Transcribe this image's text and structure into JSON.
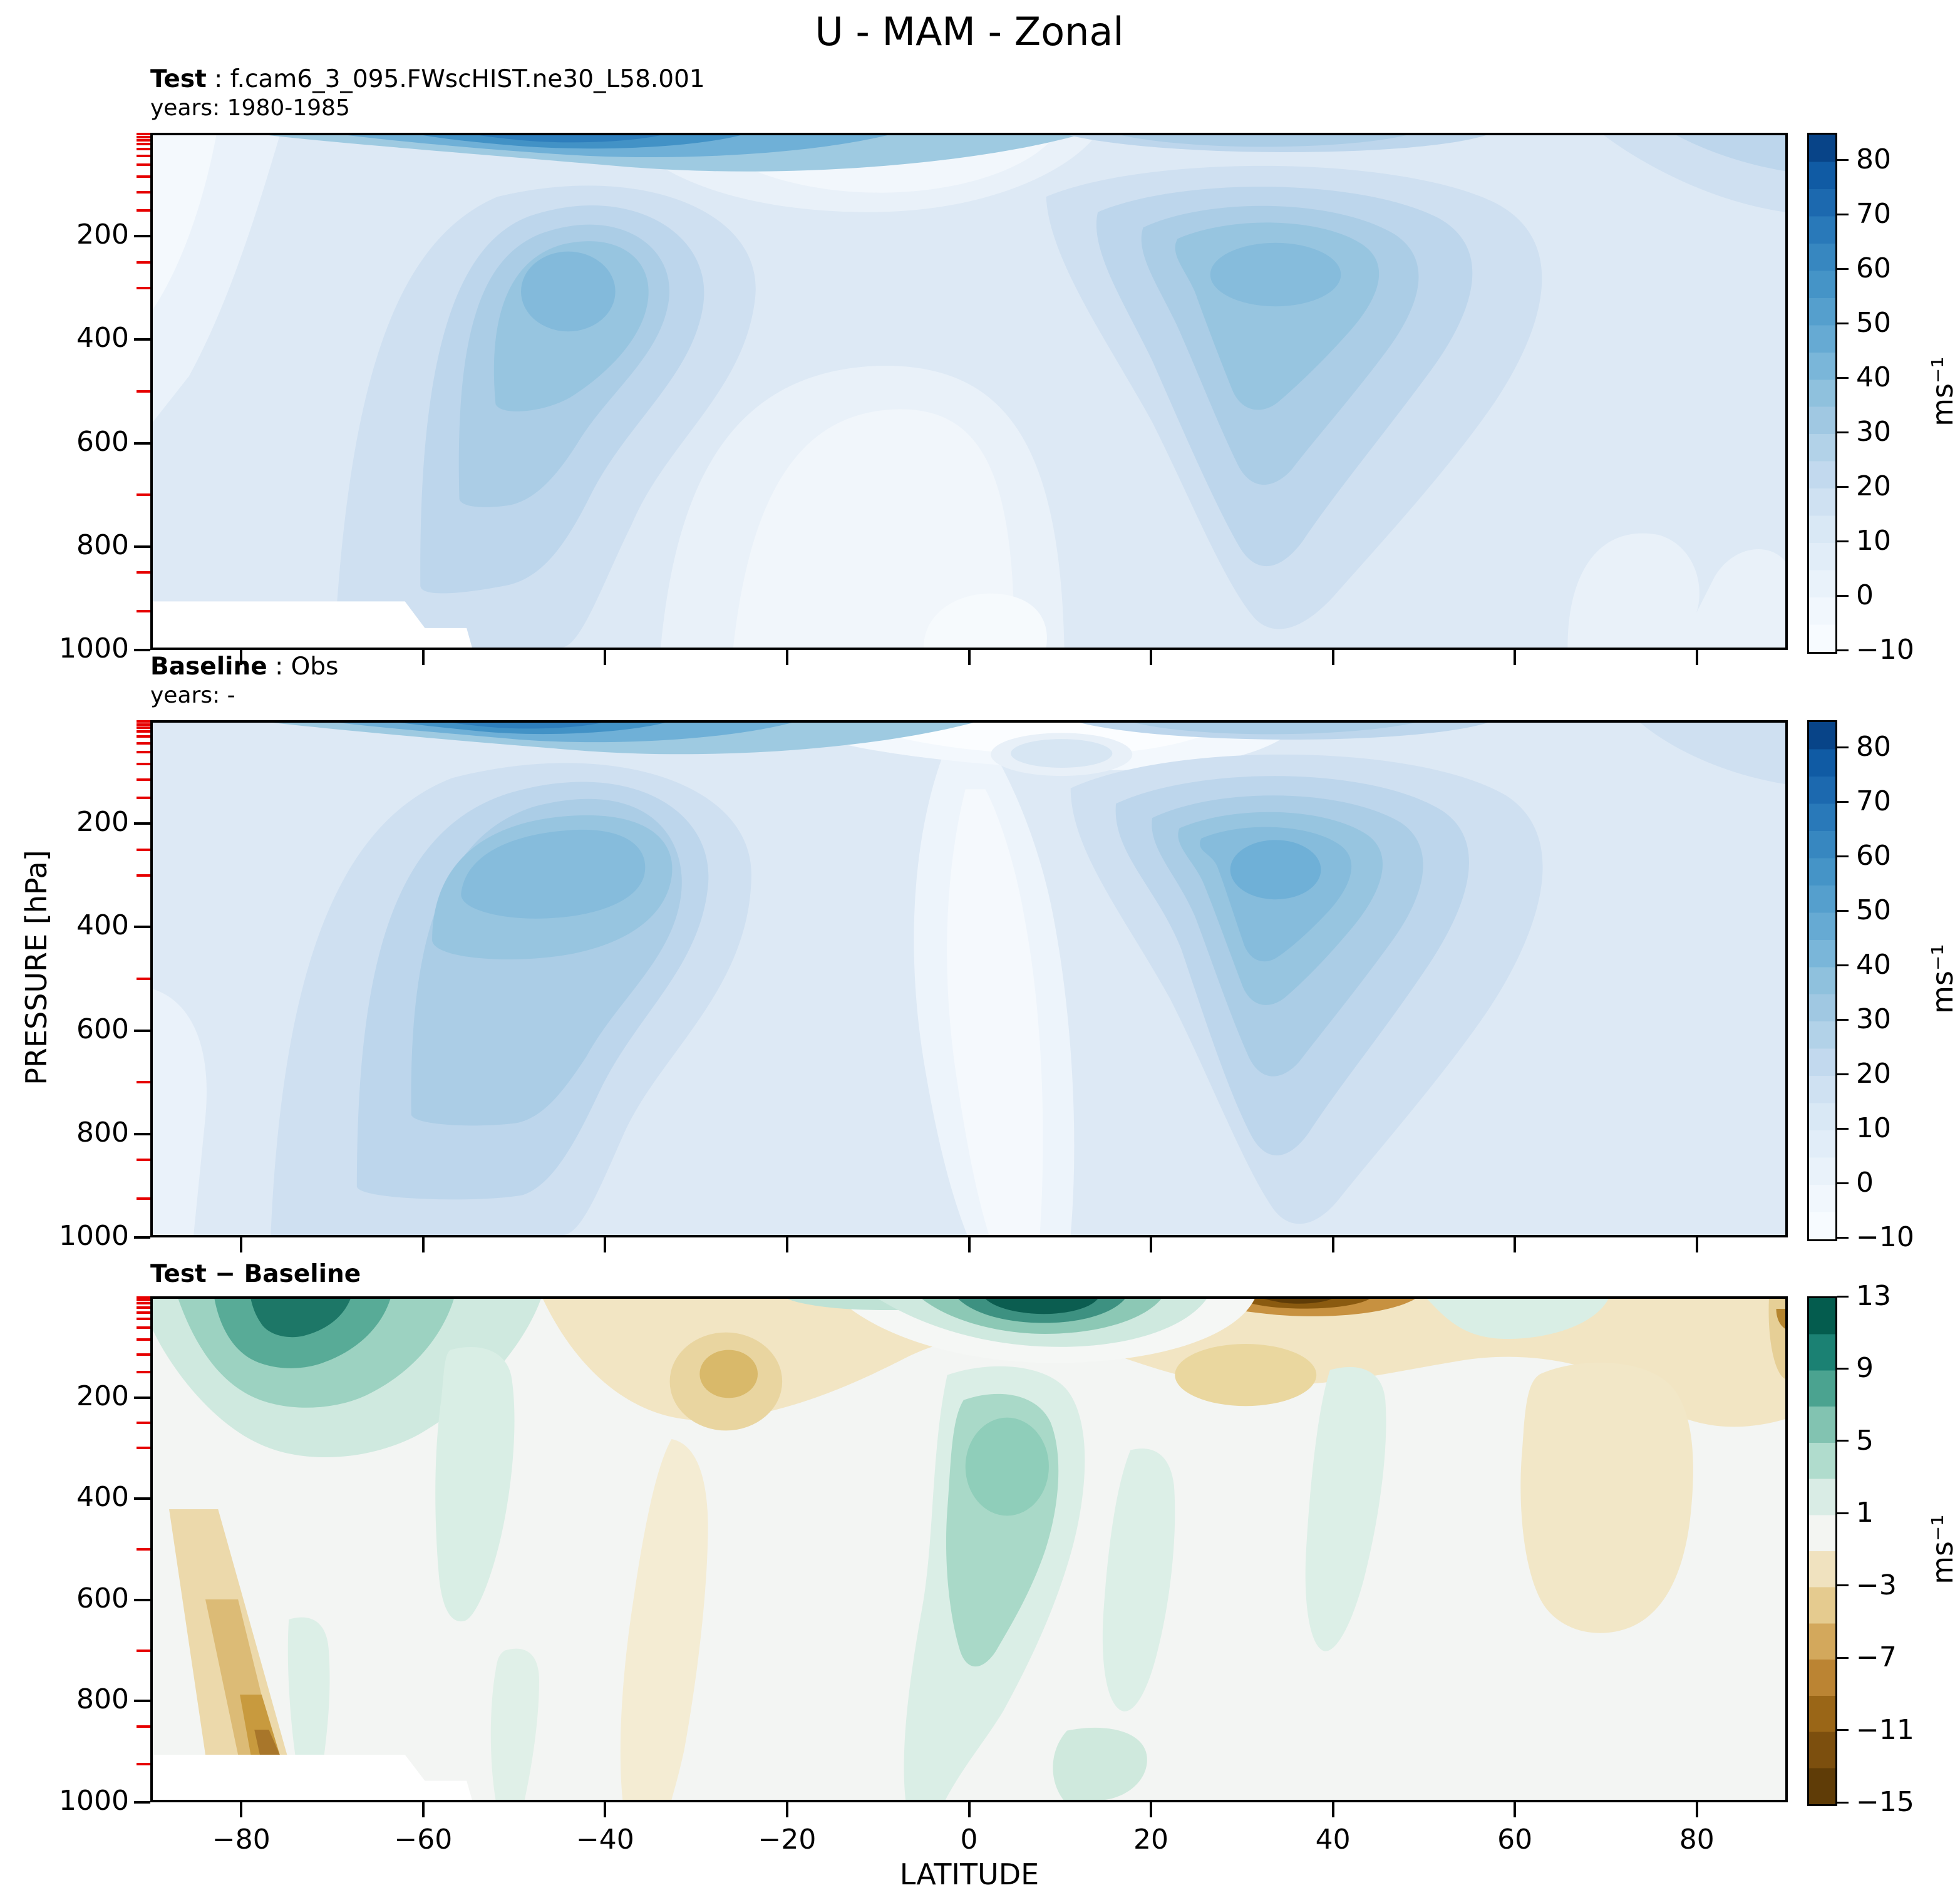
{
  "title": "U - MAM - Zonal",
  "ylabel": "PRESSURE [hPa]",
  "xlabel": "LATITUDE",
  "unit": "ms⁻¹",
  "colors": {
    "minor_tick_red": "#e60000",
    "axis_black": "#000000",
    "page_background": "#ffffff"
  },
  "panels": [
    {
      "id": "test",
      "header_bold": "Test",
      "header_sep": " : ",
      "header_value": "f.cam6_3_095.FWscHIST.ne30_L58.001",
      "years": "years: 1980-1985"
    },
    {
      "id": "baseline",
      "header_bold": "Baseline",
      "header_sep": " : ",
      "header_value": "Obs",
      "years": "years: -"
    },
    {
      "id": "difference",
      "header_bold": "Test − Baseline",
      "header_sep": "",
      "header_value": "",
      "years": ""
    }
  ],
  "axes": {
    "latitude_range": [
      -90,
      90
    ],
    "pressure_range_hPa": [
      0,
      1000
    ],
    "pressure_ticks": [
      {
        "v": 200,
        "label": "200"
      },
      {
        "v": 400,
        "label": "400"
      },
      {
        "v": 600,
        "label": "600"
      },
      {
        "v": 800,
        "label": "800"
      },
      {
        "v": 1000,
        "label": "1000"
      }
    ],
    "pressure_minor_ticks_red": [
      3,
      8,
      14,
      22,
      32,
      45,
      62,
      85,
      115,
      150,
      250,
      300,
      500,
      700,
      850,
      925
    ],
    "latitude_ticks": [
      {
        "v": -80,
        "label": "−80"
      },
      {
        "v": -60,
        "label": "−60"
      },
      {
        "v": -40,
        "label": "−40"
      },
      {
        "v": -20,
        "label": "−20"
      },
      {
        "v": 0,
        "label": "0"
      },
      {
        "v": 20,
        "label": "20"
      },
      {
        "v": 40,
        "label": "40"
      },
      {
        "v": 60,
        "label": "60"
      },
      {
        "v": 80,
        "label": "80"
      }
    ]
  },
  "colorbars": [
    {
      "panel": "test",
      "unit": "ms⁻¹",
      "min": -10,
      "max": 85,
      "band_step": 5,
      "ticks": [
        {
          "v": 80,
          "label": "80"
        },
        {
          "v": 70,
          "label": "70"
        },
        {
          "v": 60,
          "label": "60"
        },
        {
          "v": 50,
          "label": "50"
        },
        {
          "v": 40,
          "label": "40"
        },
        {
          "v": 30,
          "label": "30"
        },
        {
          "v": 20,
          "label": "20"
        },
        {
          "v": 10,
          "label": "10"
        },
        {
          "v": 0,
          "label": "0"
        },
        {
          "v": -10,
          "label": "−10"
        }
      ],
      "palette_bottom_to_top": [
        "#f7fbff",
        "#f1f7fd",
        "#e9f2fa",
        "#e1edf8",
        "#d9e8f5",
        "#cfe1f2",
        "#c2d9ee",
        "#b2d2e8",
        "#a0c8e2",
        "#8fc1dd",
        "#7ab6d9",
        "#66aad3",
        "#559fcd",
        "#4594c7",
        "#3787c0",
        "#2979b9",
        "#1c69af",
        "#105ba4",
        "#084488"
      ]
    },
    {
      "panel": "baseline",
      "unit": "ms⁻¹",
      "min": -10,
      "max": 85,
      "band_step": 5,
      "ticks": [
        {
          "v": 80,
          "label": "80"
        },
        {
          "v": 70,
          "label": "70"
        },
        {
          "v": 60,
          "label": "60"
        },
        {
          "v": 50,
          "label": "50"
        },
        {
          "v": 40,
          "label": "40"
        },
        {
          "v": 30,
          "label": "30"
        },
        {
          "v": 20,
          "label": "20"
        },
        {
          "v": 10,
          "label": "10"
        },
        {
          "v": 0,
          "label": "0"
        },
        {
          "v": -10,
          "label": "−10"
        }
      ],
      "palette_bottom_to_top": [
        "#f7fbff",
        "#f1f7fd",
        "#e9f2fa",
        "#e1edf8",
        "#d9e8f5",
        "#cfe1f2",
        "#c2d9ee",
        "#b2d2e8",
        "#a0c8e2",
        "#8fc1dd",
        "#7ab6d9",
        "#66aad3",
        "#559fcd",
        "#4594c7",
        "#3787c0",
        "#2979b9",
        "#1c69af",
        "#105ba4",
        "#084488"
      ]
    },
    {
      "panel": "difference",
      "unit": "ms⁻¹",
      "min": -15,
      "max": 13,
      "band_step": 2,
      "ticks": [
        {
          "v": 13,
          "label": "13"
        },
        {
          "v": 9,
          "label": "9"
        },
        {
          "v": 5,
          "label": "5"
        },
        {
          "v": 1,
          "label": "1"
        },
        {
          "v": -3,
          "label": "−3"
        },
        {
          "v": -7,
          "label": "−7"
        },
        {
          "v": -11,
          "label": "−11"
        },
        {
          "v": -15,
          "label": "−15"
        }
      ],
      "palette_bottom_to_top": [
        "#5f3c07",
        "#7c4f0e",
        "#9a6617",
        "#bb8433",
        "#d3a85c",
        "#e5cb8f",
        "#f0e2bf",
        "#f3f5f2",
        "#d9ece5",
        "#b0dccd",
        "#82c3b1",
        "#4ba390",
        "#1b8173",
        "#045c4e"
      ]
    }
  ],
  "chart_data": [
    {
      "type": "contour",
      "panel": "Test",
      "variable": "U",
      "season": "MAM",
      "view": "zonal mean",
      "source": "f.cam6_3_095.FWscHIST.ne30_L58.001",
      "years": "1980-1985",
      "xlabel": "LATITUDE",
      "ylabel": "PRESSURE [hPa]",
      "x_range": [
        -90,
        90
      ],
      "y_range_hPa": [
        0,
        1000
      ],
      "units": "ms⁻¹",
      "value_range": [
        -10,
        85
      ],
      "contour_interval": 5,
      "features": [
        {
          "name": "SH subtropical jet core",
          "lat": -50,
          "pressure_hPa": 270,
          "value_ms": 45
        },
        {
          "name": "NH subtropical jet core",
          "lat": 31,
          "pressure_hPa": 230,
          "value_ms": 42
        },
        {
          "name": "SH polar stratospheric jet at plot top",
          "lat": -60,
          "pressure_hPa": 10,
          "value_ms": 65
        },
        {
          "name": "equatorial weak-wind column",
          "lat": 0,
          "pressure_hPa": 600,
          "value_ms": 2
        },
        {
          "name": "missing data (Antarctic topography)",
          "region": "poleward of ~62S below ~910 hPa"
        }
      ]
    },
    {
      "type": "contour",
      "panel": "Baseline",
      "variable": "U",
      "season": "MAM",
      "view": "zonal mean",
      "source": "Obs",
      "years": "-",
      "xlabel": "LATITUDE",
      "ylabel": "PRESSURE [hPa]",
      "x_range": [
        -90,
        90
      ],
      "y_range_hPa": [
        0,
        1000
      ],
      "units": "ms⁻¹",
      "value_range": [
        -10,
        85
      ],
      "contour_interval": 5,
      "features": [
        {
          "name": "SH subtropical jet core (broad)",
          "lat": -49,
          "pressure_hPa": 260,
          "value_ms": 45
        },
        {
          "name": "NH subtropical jet core",
          "lat": 30,
          "pressure_hPa": 250,
          "value_ms": 50
        },
        {
          "name": "SH polar stratospheric jet at plot top",
          "lat": -62,
          "pressure_hPa": 10,
          "value_ms": 65
        },
        {
          "name": "near-zero wind column around equator",
          "lat": 0,
          "pressure_hPa": 500,
          "value_ms": 1
        }
      ]
    },
    {
      "type": "contour",
      "panel": "Test − Baseline",
      "variable": "U difference",
      "season": "MAM",
      "view": "zonal mean",
      "xlabel": "LATITUDE",
      "ylabel": "PRESSURE [hPa]",
      "x_range": [
        -90,
        90
      ],
      "y_range_hPa": [
        0,
        1000
      ],
      "units": "ms⁻¹",
      "value_range": [
        -15,
        13
      ],
      "contour_interval": 2,
      "features": [
        {
          "name": "max positive difference",
          "lat": 8,
          "pressure_hPa": 5,
          "value_ms": 13
        },
        {
          "name": "max negative difference",
          "lat": 38,
          "pressure_hPa": 5,
          "value_ms": -15
        },
        {
          "name": "SH polar upper-level positive wedge",
          "lat": -68,
          "pressure_hPa": 40,
          "value_ms": 9
        },
        {
          "name": "tropical mid-level positive blob",
          "lat": 5,
          "pressure_hPa": 300,
          "value_ms": 4
        },
        {
          "name": "SH subtropical upper-level negative",
          "lat": -27,
          "pressure_hPa": 150,
          "value_ms": -5
        },
        {
          "name": "NH subtropical upper-level negative",
          "lat": 30,
          "pressure_hPa": 150,
          "value_ms": -4
        },
        {
          "name": "NH high-latitude mid-level negative",
          "lat": 71,
          "pressure_hPa": 350,
          "value_ms": -3
        },
        {
          "name": "near-surface SH polar negative streak",
          "lat": -84,
          "pressure_hPa": 870,
          "value_ms": -9
        },
        {
          "name": "missing data (Antarctic topography)",
          "region": "poleward of ~62S below ~910 hPa"
        }
      ]
    }
  ]
}
